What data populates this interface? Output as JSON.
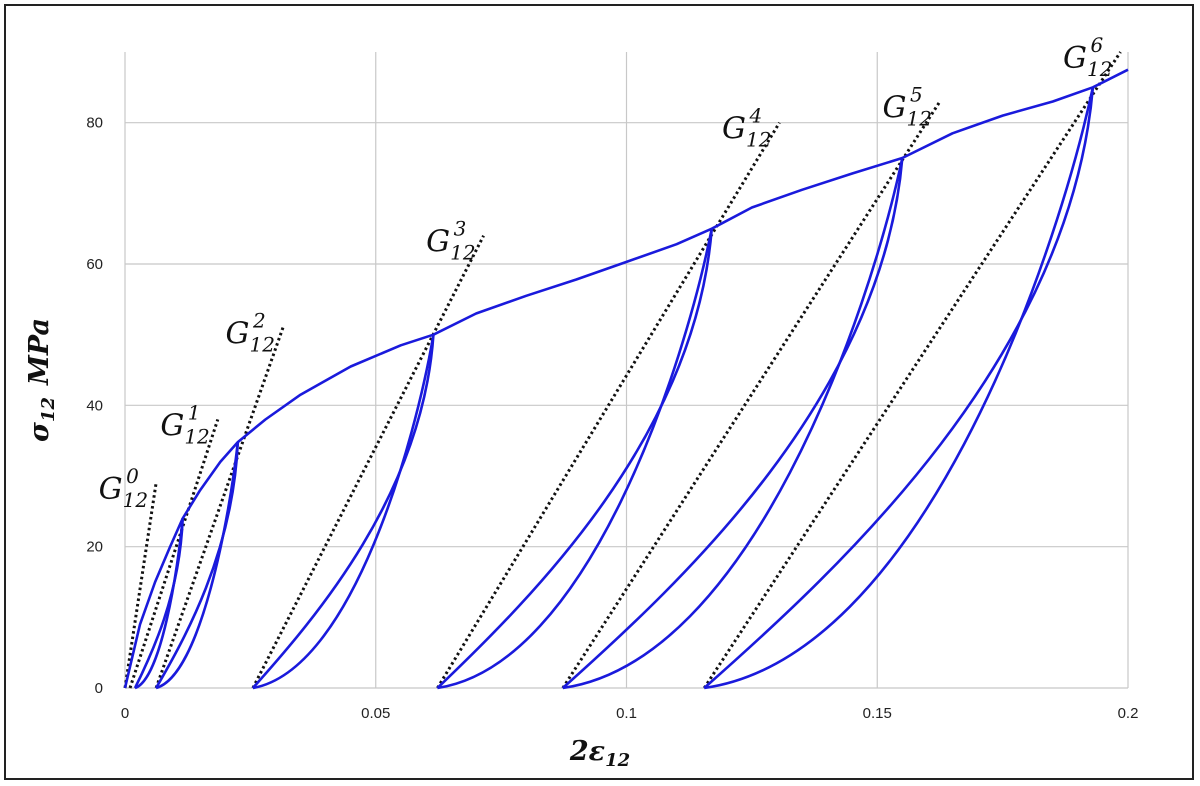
{
  "chart_data": {
    "type": "line",
    "title": "",
    "xlabel": {
      "main": "2ε",
      "sub": "12"
    },
    "ylabel": {
      "main": "σ",
      "sub": "12",
      "unit": "MPa"
    },
    "xlim": [
      0,
      0.2
    ],
    "ylim": [
      0,
      90
    ],
    "x_ticks": [
      0,
      0.05,
      0.1,
      0.15,
      0.2
    ],
    "x_tick_labels": [
      "0",
      "0.05",
      "0.1",
      "0.15",
      "0.2"
    ],
    "y_ticks": [
      0,
      20,
      40,
      60,
      80
    ],
    "y_tick_labels": [
      "0",
      "20",
      "40",
      "60",
      "80"
    ],
    "grid": true,
    "colors": {
      "curve": "#1a1adc",
      "moduli": "#111111",
      "grid": "#c8c8c8"
    },
    "envelope": [
      [
        0.0,
        0
      ],
      [
        0.003,
        9
      ],
      [
        0.006,
        15
      ],
      [
        0.009,
        20
      ],
      [
        0.0115,
        24
      ],
      [
        0.015,
        28
      ],
      [
        0.019,
        32
      ],
      [
        0.0225,
        34.8
      ],
      [
        0.028,
        38
      ],
      [
        0.035,
        41.5
      ],
      [
        0.045,
        45.5
      ],
      [
        0.055,
        48.5
      ],
      [
        0.0615,
        50
      ],
      [
        0.07,
        53
      ],
      [
        0.08,
        55.5
      ],
      [
        0.09,
        57.8
      ],
      [
        0.1,
        60.3
      ],
      [
        0.11,
        62.8
      ],
      [
        0.117,
        65
      ],
      [
        0.125,
        68
      ],
      [
        0.135,
        70.5
      ],
      [
        0.145,
        72.8
      ],
      [
        0.155,
        75
      ],
      [
        0.165,
        78.5
      ],
      [
        0.175,
        81
      ],
      [
        0.185,
        83
      ],
      [
        0.193,
        85
      ],
      [
        0.2,
        87.5
      ]
    ],
    "cycles": [
      {
        "peak": [
          0.0115,
          24
        ],
        "zero": 0.002
      },
      {
        "peak": [
          0.0225,
          34.8
        ],
        "zero": 0.0062
      },
      {
        "peak": [
          0.0615,
          50
        ],
        "zero": 0.0255
      },
      {
        "peak": [
          0.117,
          65
        ],
        "zero": 0.0623
      },
      {
        "peak": [
          0.155,
          75
        ],
        "zero": 0.0873
      },
      {
        "peak": [
          0.193,
          85
        ],
        "zero": 0.1155
      }
    ],
    "moduli": [
      {
        "label": "G",
        "sub": "12",
        "sup": "0",
        "from": [
          0.0,
          0
        ],
        "to": [
          0.0062,
          29
        ]
      },
      {
        "label": "G",
        "sub": "12",
        "sup": "1",
        "from": [
          0.001,
          0
        ],
        "to": [
          0.0185,
          38
        ]
      },
      {
        "label": "G",
        "sub": "12",
        "sup": "2",
        "from": [
          0.0062,
          0
        ],
        "to": [
          0.0315,
          51
        ]
      },
      {
        "label": "G",
        "sub": "12",
        "sup": "3",
        "from": [
          0.0255,
          0
        ],
        "to": [
          0.0715,
          64
        ]
      },
      {
        "label": "G",
        "sub": "12",
        "sup": "4",
        "from": [
          0.0623,
          0
        ],
        "to": [
          0.1305,
          80
        ]
      },
      {
        "label": "G",
        "sub": "12",
        "sup": "5",
        "from": [
          0.0873,
          0
        ],
        "to": [
          0.1625,
          83
        ]
      },
      {
        "label": "G",
        "sub": "12",
        "sup": "6",
        "from": [
          0.1155,
          0
        ],
        "to": [
          0.1985,
          90
        ]
      }
    ]
  }
}
